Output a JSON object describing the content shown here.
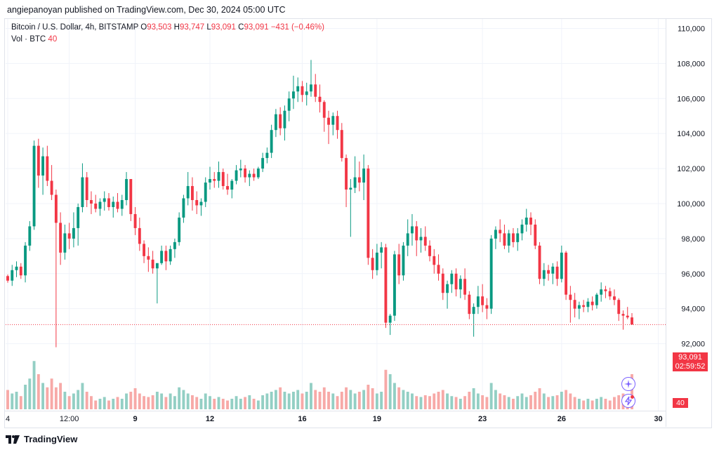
{
  "header": {
    "published_text": "angiepanoyan published on TradingView.com, Dec 30, 2024 05:00 UTC"
  },
  "legend": {
    "symbol": "Bitcoin / U.S. Dollar, 4h, BITSTAMP",
    "open_label": "O",
    "open": "93,503",
    "high_label": "H",
    "high": "93,747",
    "low_label": "L",
    "low": "93,091",
    "close_label": "C",
    "close": "93,091",
    "change": "−431 (−0.46%)",
    "vol_label": "Vol · BTC",
    "vol_value": "40"
  },
  "price_tag": {
    "price": "93,091",
    "countdown": "02:59:52"
  },
  "volume_tag": "40",
  "footer": {
    "brand": "TradingView"
  },
  "colors": {
    "up": "#089981",
    "down": "#f23645",
    "up_vol": "#93cfc4",
    "down_vol": "#f7a9a7"
  },
  "icons": [
    "plus-circle-icon",
    "lightning-alert-icon",
    "tradingview-logo-icon"
  ],
  "chart_data": {
    "type": "candlestick",
    "title": "Bitcoin / U.S. Dollar, 4h, BITSTAMP",
    "ylim": [
      90500,
      110300
    ],
    "y_ticks": [
      "92,000",
      "94,000",
      "96,000",
      "98,000",
      "100,000",
      "102,000",
      "104,000",
      "106,000",
      "108,000",
      "110,000"
    ],
    "y_tick_values": [
      92000,
      94000,
      96000,
      98000,
      100000,
      102000,
      104000,
      106000,
      108000,
      110000
    ],
    "x_ticks": [
      "4",
      "12:00",
      "9",
      "12",
      "16",
      "19",
      "23",
      "26",
      "30"
    ],
    "x_tick_candle_index": [
      0,
      14,
      29,
      46,
      67,
      84,
      108,
      126,
      148
    ],
    "x_tick_bold": [
      false,
      false,
      true,
      true,
      true,
      true,
      true,
      true,
      true
    ],
    "last_price": 93091,
    "candles": [
      [
        95860,
        95950,
        95480,
        95600,
        22
      ],
      [
        95600,
        96500,
        95300,
        96200,
        18
      ],
      [
        96200,
        96700,
        95800,
        96400,
        20
      ],
      [
        96400,
        96600,
        95700,
        95900,
        15
      ],
      [
        95900,
        97800,
        95500,
        97600,
        28
      ],
      [
        97600,
        99000,
        97300,
        98700,
        35
      ],
      [
        98700,
        103600,
        98500,
        103300,
        55
      ],
      [
        103300,
        103700,
        100900,
        101600,
        40
      ],
      [
        101600,
        103200,
        100500,
        102700,
        30
      ],
      [
        102700,
        103300,
        101000,
        101300,
        25
      ],
      [
        101300,
        102200,
        100200,
        100500,
        35
      ],
      [
        100500,
        100800,
        91800,
        98900,
        25
      ],
      [
        98900,
        99500,
        96500,
        97200,
        30
      ],
      [
        97200,
        98800,
        96800,
        98300,
        20
      ],
      [
        98300,
        98900,
        97400,
        98000,
        15
      ],
      [
        98000,
        99500,
        97500,
        98600,
        18
      ],
      [
        98600,
        100000,
        97600,
        99800,
        22
      ],
      [
        99800,
        102300,
        99500,
        101500,
        30
      ],
      [
        101500,
        101800,
        99800,
        100200,
        20
      ],
      [
        100200,
        100700,
        99400,
        100000,
        15
      ],
      [
        100000,
        100500,
        99500,
        99700,
        10
      ],
      [
        99700,
        100300,
        99300,
        100100,
        12
      ],
      [
        100100,
        100700,
        99600,
        100300,
        14
      ],
      [
        100300,
        100600,
        99600,
        99800,
        10
      ],
      [
        99800,
        100400,
        99200,
        100100,
        12
      ],
      [
        100100,
        100600,
        99500,
        99700,
        14
      ],
      [
        99700,
        100500,
        99300,
        100200,
        12
      ],
      [
        100200,
        101800,
        99900,
        101400,
        18
      ],
      [
        101400,
        101400,
        99000,
        99400,
        20
      ],
      [
        99400,
        99800,
        98200,
        98600,
        24
      ],
      [
        98600,
        99200,
        97300,
        97700,
        18
      ],
      [
        97700,
        97900,
        96600,
        97000,
        15
      ],
      [
        97000,
        97500,
        96100,
        96800,
        14
      ],
      [
        96800,
        97300,
        96000,
        96300,
        16
      ],
      [
        96300,
        96600,
        94300,
        96600,
        20
      ],
      [
        96600,
        97600,
        96500,
        97300,
        18
      ],
      [
        97300,
        97600,
        96200,
        96700,
        14
      ],
      [
        96700,
        97600,
        96500,
        97400,
        18
      ],
      [
        97400,
        98000,
        96900,
        97800,
        15
      ],
      [
        97800,
        99500,
        97600,
        99200,
        25
      ],
      [
        99200,
        100500,
        98900,
        100300,
        22
      ],
      [
        100300,
        101800,
        99900,
        101000,
        18
      ],
      [
        101000,
        101500,
        99600,
        100200,
        16
      ],
      [
        100200,
        100700,
        99400,
        99900,
        14
      ],
      [
        99900,
        100300,
        99300,
        100100,
        12
      ],
      [
        100100,
        101500,
        99800,
        101200,
        18
      ],
      [
        101200,
        102100,
        100800,
        101400,
        15
      ],
      [
        101400,
        101800,
        100900,
        101300,
        12
      ],
      [
        101300,
        102400,
        100900,
        101800,
        14
      ],
      [
        101800,
        102000,
        100800,
        101000,
        12
      ],
      [
        101000,
        101700,
        100500,
        100800,
        10
      ],
      [
        100800,
        101400,
        100300,
        101300,
        12
      ],
      [
        101300,
        102200,
        101100,
        101900,
        15
      ],
      [
        101900,
        102500,
        101500,
        102000,
        12
      ],
      [
        102000,
        102200,
        101200,
        101500,
        14
      ],
      [
        101500,
        101900,
        101000,
        101700,
        16
      ],
      [
        101700,
        102000,
        101300,
        101500,
        12
      ],
      [
        101500,
        102100,
        101400,
        102000,
        10
      ],
      [
        102000,
        102900,
        101800,
        102600,
        16
      ],
      [
        102600,
        103200,
        102300,
        102900,
        18
      ],
      [
        102900,
        104500,
        102600,
        104200,
        20
      ],
      [
        104200,
        105400,
        103800,
        105100,
        22
      ],
      [
        105100,
        105500,
        103900,
        104300,
        25
      ],
      [
        104300,
        105600,
        103600,
        105300,
        20
      ],
      [
        105300,
        106400,
        104700,
        106000,
        18
      ],
      [
        106000,
        107300,
        105400,
        106400,
        20
      ],
      [
        106400,
        107200,
        105800,
        106700,
        22
      ],
      [
        106700,
        107000,
        105800,
        106200,
        18
      ],
      [
        106200,
        106900,
        105600,
        106400,
        20
      ],
      [
        106400,
        108200,
        106100,
        106800,
        30
      ],
      [
        106800,
        107400,
        105800,
        106100,
        22
      ],
      [
        106100,
        106800,
        105200,
        105800,
        20
      ],
      [
        105800,
        105900,
        104100,
        104900,
        25
      ],
      [
        104900,
        105300,
        103400,
        104500,
        20
      ],
      [
        104500,
        105200,
        103900,
        105000,
        18
      ],
      [
        105000,
        105300,
        103700,
        104200,
        15
      ],
      [
        104200,
        104600,
        102400,
        102600,
        20
      ],
      [
        102600,
        102800,
        99800,
        100800,
        25
      ],
      [
        100800,
        101400,
        98100,
        100900,
        22
      ],
      [
        100900,
        102700,
        100600,
        101500,
        18
      ],
      [
        101500,
        102400,
        100700,
        101200,
        20
      ],
      [
        101200,
        102800,
        100200,
        102000,
        22
      ],
      [
        102000,
        102200,
        96500,
        96900,
        28
      ],
      [
        96900,
        97400,
        95700,
        96200,
        24
      ],
      [
        96200,
        97700,
        95900,
        97200,
        18
      ],
      [
        97200,
        97800,
        96300,
        97500,
        20
      ],
      [
        97500,
        97700,
        92900,
        93200,
        45
      ],
      [
        93200,
        93700,
        92500,
        93600,
        40
      ],
      [
        93600,
        97300,
        93300,
        97100,
        30
      ],
      [
        97100,
        97700,
        95400,
        95900,
        25
      ],
      [
        95900,
        97800,
        95600,
        97600,
        22
      ],
      [
        97600,
        99100,
        97000,
        98300,
        20
      ],
      [
        98300,
        99400,
        97600,
        98700,
        18
      ],
      [
        98700,
        99000,
        97000,
        97900,
        15
      ],
      [
        97900,
        98600,
        97200,
        98100,
        14
      ],
      [
        98100,
        98700,
        97300,
        97600,
        16
      ],
      [
        97600,
        97900,
        96700,
        97000,
        15
      ],
      [
        97000,
        97400,
        96000,
        96500,
        18
      ],
      [
        96500,
        97100,
        95600,
        96000,
        20
      ],
      [
        96000,
        96300,
        94500,
        94900,
        22
      ],
      [
        94900,
        95600,
        94000,
        95400,
        18
      ],
      [
        95400,
        96200,
        94900,
        96000,
        15
      ],
      [
        96000,
        96300,
        94700,
        95100,
        14
      ],
      [
        95100,
        95900,
        94600,
        95700,
        12
      ],
      [
        95700,
        96300,
        94500,
        94800,
        15
      ],
      [
        94800,
        95000,
        93400,
        93700,
        20
      ],
      [
        93700,
        94300,
        92400,
        94100,
        24
      ],
      [
        94100,
        95300,
        93700,
        94700,
        18
      ],
      [
        94700,
        95400,
        93800,
        94200,
        16
      ],
      [
        94200,
        94600,
        93400,
        94000,
        14
      ],
      [
        94000,
        98200,
        93700,
        98000,
        30
      ],
      [
        98000,
        98700,
        97400,
        98500,
        22
      ],
      [
        98500,
        99100,
        97800,
        98300,
        18
      ],
      [
        98300,
        98800,
        97400,
        97600,
        16
      ],
      [
        97600,
        98500,
        97200,
        98300,
        14
      ],
      [
        98300,
        98600,
        97500,
        97800,
        12
      ],
      [
        97800,
        98600,
        97300,
        98300,
        15
      ],
      [
        98300,
        99100,
        97900,
        98800,
        18
      ],
      [
        98800,
        99700,
        98400,
        99200,
        14
      ],
      [
        99200,
        99500,
        98200,
        98800,
        16
      ],
      [
        98800,
        99100,
        97400,
        97600,
        20
      ],
      [
        97600,
        97800,
        95400,
        95700,
        24
      ],
      [
        95700,
        96600,
        95300,
        96200,
        18
      ],
      [
        96200,
        96500,
        95600,
        96000,
        14
      ],
      [
        96000,
        96600,
        95400,
        96400,
        15
      ],
      [
        96400,
        96700,
        95300,
        95700,
        16
      ],
      [
        95700,
        97600,
        95500,
        97200,
        20
      ],
      [
        97200,
        97300,
        94500,
        94800,
        22
      ],
      [
        94800,
        95300,
        93200,
        94500,
        18
      ],
      [
        94500,
        94900,
        93500,
        94000,
        14
      ],
      [
        94000,
        94400,
        93400,
        94200,
        12
      ],
      [
        94200,
        94500,
        93800,
        94100,
        10
      ],
      [
        94100,
        94600,
        93800,
        94400,
        12
      ],
      [
        94400,
        94700,
        93900,
        94200,
        10
      ],
      [
        94200,
        94900,
        94000,
        94800,
        12
      ],
      [
        94800,
        95500,
        94400,
        95100,
        14
      ],
      [
        95100,
        95300,
        94600,
        95000,
        12
      ],
      [
        95000,
        95200,
        94500,
        94700,
        10
      ],
      [
        94700,
        95100,
        94200,
        94500,
        14
      ],
      [
        94500,
        94600,
        93300,
        93700,
        16
      ],
      [
        93700,
        93900,
        92800,
        93600,
        18
      ],
      [
        93600,
        94100,
        93400,
        93500,
        14
      ],
      [
        93500,
        93747,
        93091,
        93091,
        40
      ]
    ]
  }
}
